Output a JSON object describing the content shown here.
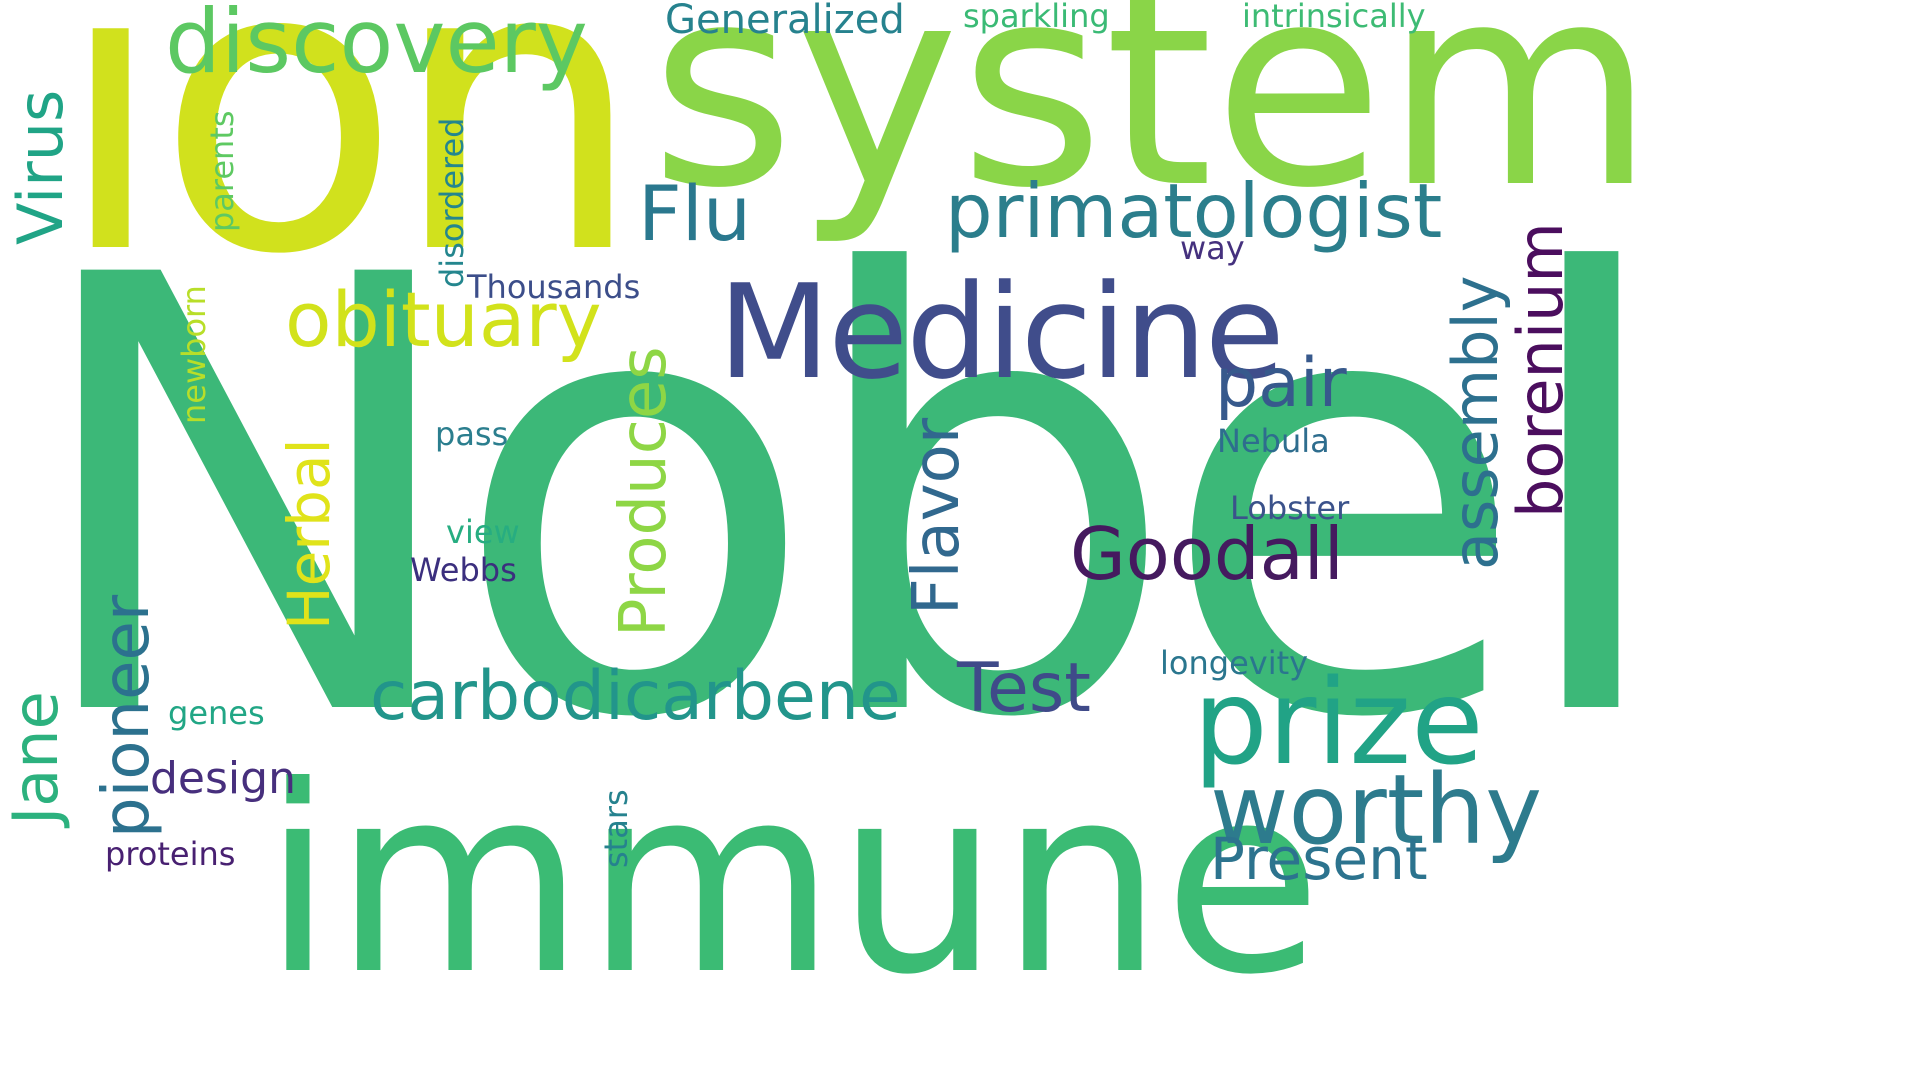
{
  "words": [
    {
      "key": "nobel",
      "text": "Nobel",
      "color": "#3cb878"
    },
    {
      "key": "ion",
      "text": "ion",
      "color": "#d1e11d"
    },
    {
      "key": "system",
      "text": "system",
      "color": "#8ad548"
    },
    {
      "key": "immune",
      "text": "immune",
      "color": "#3bbb74"
    },
    {
      "key": "medicine",
      "text": "Medicine",
      "color": "#404d8b"
    },
    {
      "key": "discovery",
      "text": "discovery",
      "color": "#5cc862"
    },
    {
      "key": "primatologist",
      "text": "primatologist",
      "color": "#2b7e8c"
    },
    {
      "key": "prize",
      "text": "prize",
      "color": "#21a386"
    },
    {
      "key": "worthy",
      "text": "worthy",
      "color": "#2d7b8d"
    },
    {
      "key": "obituary",
      "text": "obituary",
      "color": "#d2e21b"
    },
    {
      "key": "carbodicarbene",
      "text": "carbodicarbene",
      "color": "#22958b"
    },
    {
      "key": "goodall",
      "text": "Goodall",
      "color": "#451a5f"
    },
    {
      "key": "flu",
      "text": "Flu",
      "color": "#2a788e"
    },
    {
      "key": "test",
      "text": "Test",
      "color": "#3f4a89"
    },
    {
      "key": "pair",
      "text": "pair",
      "color": "#37598c"
    },
    {
      "key": "present",
      "text": "Present",
      "color": "#2c738e"
    },
    {
      "key": "design",
      "text": "design",
      "color": "#472f7d"
    },
    {
      "key": "generalized",
      "text": "Generalized",
      "color": "#26828e"
    },
    {
      "key": "sparkling",
      "text": "sparkling",
      "color": "#3aba75"
    },
    {
      "key": "intrinsically",
      "text": "intrinsically",
      "color": "#3dbb74"
    },
    {
      "key": "thousands",
      "text": "Thousands",
      "color": "#3c4e8a"
    },
    {
      "key": "way",
      "text": "way",
      "color": "#45317e"
    },
    {
      "key": "nebula",
      "text": "Nebula",
      "color": "#2e6d8e"
    },
    {
      "key": "lobster",
      "text": "Lobster",
      "color": "#3b528b"
    },
    {
      "key": "longevity",
      "text": "longevity",
      "color": "#2a768e"
    },
    {
      "key": "genes",
      "text": "genes",
      "color": "#21a685"
    },
    {
      "key": "proteins",
      "text": "proteins",
      "color": "#482071"
    },
    {
      "key": "pass",
      "text": "pass",
      "color": "#2b7e8e"
    },
    {
      "key": "view",
      "text": "view",
      "color": "#27ad81"
    },
    {
      "key": "webbs",
      "text": "Webbs",
      "color": "#3b2f7e"
    },
    {
      "key": "virus",
      "text": "Virus",
      "color": "#20a486"
    },
    {
      "key": "jane",
      "text": "Jane",
      "color": "#2cb17e"
    },
    {
      "key": "pioneer",
      "text": "pioneer",
      "color": "#2c718e"
    },
    {
      "key": "herbal",
      "text": "Herbal",
      "color": "#e0e31a"
    },
    {
      "key": "produces",
      "text": "Produces",
      "color": "#8ed645"
    },
    {
      "key": "flavor",
      "text": "Flavor",
      "color": "#31688e"
    },
    {
      "key": "assembly",
      "text": "assembly",
      "color": "#2d708e"
    },
    {
      "key": "borenium",
      "text": "borenium",
      "color": "#4b0e5e"
    },
    {
      "key": "parents",
      "text": "parents",
      "color": "#5ec962"
    },
    {
      "key": "disordered",
      "text": "disordered",
      "color": "#24868e"
    },
    {
      "key": "newborn",
      "text": "newborn",
      "color": "#b8de29"
    },
    {
      "key": "stars",
      "text": "stars",
      "color": "#26828e"
    }
  ]
}
